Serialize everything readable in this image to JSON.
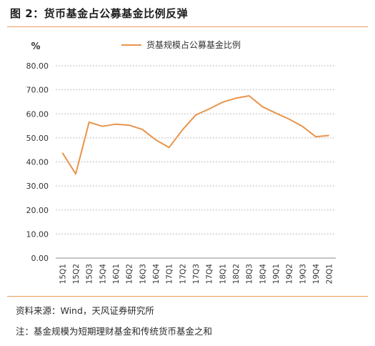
{
  "header": {
    "title": "图 2：货币基金占公募基金比例反弹"
  },
  "footer": {
    "source": "资料来源：Wind，天风证券研究所",
    "note": "注：基金规模为短期理财基金和传统货币基金之和"
  },
  "colors": {
    "accent": "#e8944a",
    "grid": "#bfbfbf",
    "axis": "#8c8c8c"
  },
  "chart_data": {
    "type": "line",
    "ylabel": "%",
    "ylim": [
      0,
      80
    ],
    "yticks": [
      "0.00",
      "10.00",
      "20.00",
      "30.00",
      "40.00",
      "50.00",
      "60.00",
      "70.00",
      "80.00"
    ],
    "grid": true,
    "legend_position": "top-center",
    "categories": [
      "15Q1",
      "15Q2",
      "15Q3",
      "15Q4",
      "16Q1",
      "16Q2",
      "16Q3",
      "16Q4",
      "17Q1",
      "17Q2",
      "17Q3",
      "17Q4",
      "18Q1",
      "18Q2",
      "18Q3",
      "18Q4",
      "19Q1",
      "19Q2",
      "19Q3",
      "19Q4",
      "20Q1"
    ],
    "series": [
      {
        "name": "货基规模占公募基金比例",
        "color": "#e8944a",
        "values": [
          43.8,
          35.0,
          56.5,
          54.8,
          55.7,
          55.3,
          53.5,
          49.2,
          46.0,
          53.3,
          59.5,
          62.0,
          64.8,
          66.5,
          67.5,
          63.0,
          60.3,
          57.8,
          54.8,
          50.5,
          51.0
        ]
      }
    ]
  }
}
